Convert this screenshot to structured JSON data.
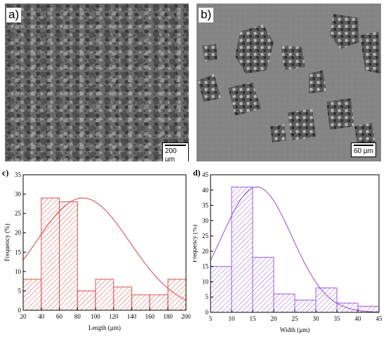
{
  "panels": {
    "a": {
      "letter": "a)",
      "scale_label": "200 µm"
    },
    "b": {
      "letter": "b)",
      "scale_label": "60 µm"
    }
  },
  "chart_data": [
    {
      "panel_letter": "c)",
      "type": "bar",
      "subtype": "histogram-with-normal-fit",
      "xlabel": "Length (µm)",
      "ylabel": "Frequency (%)",
      "xlim": [
        20,
        200
      ],
      "ylim": [
        0,
        35
      ],
      "xticks": [
        20,
        40,
        60,
        80,
        100,
        120,
        140,
        160,
        180,
        200
      ],
      "yticks": [
        0,
        5,
        10,
        15,
        20,
        25,
        30,
        35
      ],
      "bins": [
        [
          20,
          40
        ],
        [
          40,
          60
        ],
        [
          60,
          80
        ],
        [
          80,
          100
        ],
        [
          100,
          120
        ],
        [
          120,
          140
        ],
        [
          140,
          160
        ],
        [
          160,
          180
        ],
        [
          180,
          200
        ]
      ],
      "values": [
        8,
        29,
        28,
        5,
        8,
        6,
        4,
        4,
        8
      ],
      "fit": {
        "mean": 86,
        "sd": 52,
        "peak": 29
      },
      "color": "#d9534f"
    },
    {
      "panel_letter": "d)",
      "type": "bar",
      "subtype": "histogram-with-normal-fit",
      "xlabel": "Width (µm)",
      "ylabel": "Frequency (%)",
      "xlim": [
        5,
        45
      ],
      "ylim": [
        0,
        45
      ],
      "xticks": [
        5,
        10,
        15,
        20,
        25,
        30,
        35,
        40,
        45
      ],
      "yticks": [
        0,
        5,
        10,
        15,
        20,
        25,
        30,
        35,
        40,
        45
      ],
      "bins": [
        [
          5,
          10
        ],
        [
          10,
          15
        ],
        [
          15,
          20
        ],
        [
          20,
          25
        ],
        [
          25,
          30
        ],
        [
          30,
          35
        ],
        [
          35,
          40
        ],
        [
          40,
          45
        ]
      ],
      "values": [
        15,
        41,
        18,
        6,
        4,
        8,
        3,
        2
      ],
      "fit": {
        "mean": 16,
        "sd": 8.3,
        "peak": 41
      },
      "color": "#9b59d9"
    }
  ]
}
